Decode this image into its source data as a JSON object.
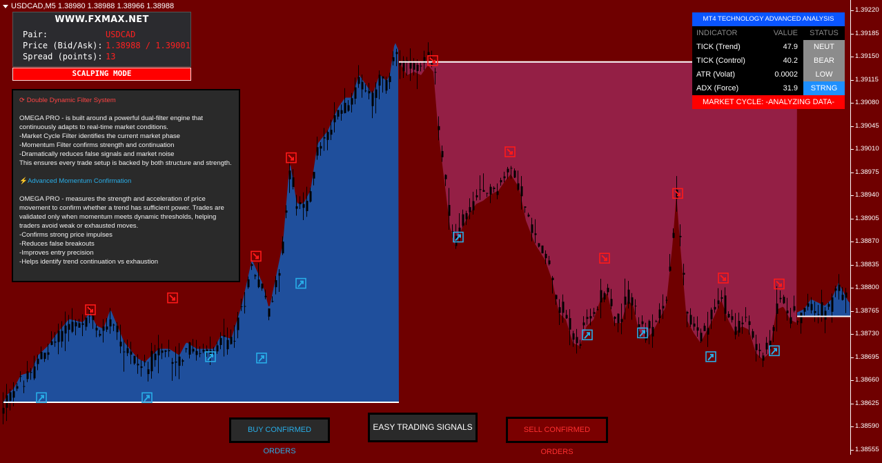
{
  "window": {
    "title": "USDCAD,M5  1.38980 1.38988 1.38966 1.38988"
  },
  "info_panel": {
    "site": "WWW.FXMAX.NET",
    "rows": [
      {
        "label": "Pair:",
        "value": "USDCAD"
      },
      {
        "label": "Price (Bid/Ask):",
        "value": "1.38988 / 1.39001"
      },
      {
        "label": "Spread (points):",
        "value": "13"
      }
    ],
    "mode": "SCALPING MODE"
  },
  "description": {
    "section1_title": "Double Dynamic Filter System",
    "section1_text": "OMEGA PRO - is built around a powerful dual-filter engine that continuously adapts to real-time market conditions.\n-Market Cycle Filter identifies the current market phase\n-Momentum Filter confirms strength and continuation\n-Dramatically reduces false signals and market noise\nThis ensures every trade setup is backed by both structure and strength.",
    "section2_title": "Advanced Momentum Confirmation",
    "section2_text": "OMEGA PRO - measures the strength and acceleration of price movement to confirm whether a trend has sufficient power. Trades are validated only when momentum meets dynamic thresholds, helping traders avoid weak or exhausted moves.\n-Confirms strong price impulses\n-Reduces false breakouts\n-Improves entry precision\n-Helps identify trend continuation vs exhaustion"
  },
  "tech_panel": {
    "title": "MT4 TECHNOLOGY ADVANCED ANALYSIS",
    "headers": [
      "INDICATOR",
      "VALUE",
      "STATUS"
    ],
    "rows": [
      {
        "indicator": "TICK (Trend)",
        "value": "47.9",
        "status": "NEUT",
        "status_color": "#8c8c8c"
      },
      {
        "indicator": "TICK (Control)",
        "value": "40.2",
        "status": "BEAR",
        "status_color": "#8c8c8c"
      },
      {
        "indicator": "ATR (Volat)",
        "value": "0.0002",
        "status": "LOW",
        "status_color": "#8c8c8c"
      },
      {
        "indicator": "ADX (Force)",
        "value": "31.9",
        "status": "STRNG",
        "status_color": "#1e90ff"
      }
    ],
    "cycle": "MARKET CYCLE: -ANALYZING DATA-"
  },
  "buttons": {
    "buy": "BUY CONFIRMED ORDERS",
    "easy": "EASY TRADING SIGNALS",
    "sell": "SELL CONFIRMED ORDERS"
  },
  "colors": {
    "background": "#6f0000",
    "bull_zone": "#1f4f9c",
    "bear_zone": "#941f45",
    "candle": "#000000",
    "buy_arrow": "#29aee8",
    "sell_arrow": "#ff1a1a"
  },
  "chart_data": {
    "type": "candlestick",
    "symbol": "USDCAD",
    "timeframe": "M5",
    "ylim": [
      1.38555,
      1.39235
    ],
    "price_ticks": [
      "1.39220",
      "1.39185",
      "1.39150",
      "1.39115",
      "1.39080",
      "1.39045",
      "1.39010",
      "1.38975",
      "1.38940",
      "1.38905",
      "1.38870",
      "1.38835",
      "1.38800",
      "1.38765",
      "1.38730",
      "1.38695",
      "1.38660",
      "1.38625",
      "1.38590",
      "1.38555"
    ],
    "bar_count": 245,
    "waypoints": [
      [
        0,
        1.38605
      ],
      [
        10,
        1.3863
      ],
      [
        20,
        1.3864
      ],
      [
        30,
        1.3866
      ],
      [
        45,
        1.38665
      ],
      [
        55,
        1.3869
      ],
      [
        70,
        1.38705
      ],
      [
        80,
        1.3872
      ],
      [
        100,
        1.38745
      ],
      [
        120,
        1.3874
      ],
      [
        130,
        1.38755
      ],
      [
        140,
        1.38735
      ],
      [
        150,
        1.3873
      ],
      [
        160,
        1.3876
      ],
      [
        180,
        1.3871
      ],
      [
        200,
        1.38685
      ],
      [
        210,
        1.3868
      ],
      [
        230,
        1.387
      ],
      [
        245,
        1.387
      ],
      [
        260,
        1.3869
      ],
      [
        270,
        1.3871
      ],
      [
        285,
        1.387
      ],
      [
        300,
        1.387
      ],
      [
        310,
        1.387
      ],
      [
        320,
        1.3872
      ],
      [
        335,
        1.38715
      ],
      [
        350,
        1.38765
      ],
      [
        365,
        1.38835
      ],
      [
        380,
        1.388
      ],
      [
        390,
        1.3876
      ],
      [
        400,
        1.3881
      ],
      [
        410,
        1.3886
      ],
      [
        420,
        1.38985
      ],
      [
        430,
        1.3892
      ],
      [
        440,
        1.3892
      ],
      [
        450,
        1.3894
      ],
      [
        460,
        1.3901
      ],
      [
        475,
        1.3903
      ],
      [
        490,
        1.39065
      ],
      [
        500,
        1.3908
      ],
      [
        510,
        1.3908
      ],
      [
        520,
        1.39115
      ],
      [
        530,
        1.391
      ],
      [
        540,
        1.39085
      ],
      [
        550,
        1.39115
      ],
      [
        560,
        1.39105
      ],
      [
        565,
        1.39115
      ],
      [
        572,
        1.39165
      ],
      [
        578,
        1.3915
      ],
      [
        590,
        1.3913
      ],
      [
        600,
        1.39135
      ],
      [
        610,
        1.3913
      ],
      [
        620,
        1.39145
      ],
      [
        628,
        1.39135
      ],
      [
        635,
        1.39045
      ],
      [
        645,
        1.3896
      ],
      [
        652,
        1.389
      ],
      [
        660,
        1.3887
      ],
      [
        670,
        1.389
      ],
      [
        680,
        1.3892
      ],
      [
        690,
        1.38935
      ],
      [
        700,
        1.3894
      ],
      [
        712,
        1.3895
      ],
      [
        722,
        1.38955
      ],
      [
        732,
        1.3897
      ],
      [
        740,
        1.3898
      ],
      [
        752,
        1.3896
      ],
      [
        762,
        1.3891
      ],
      [
        775,
        1.38875
      ],
      [
        790,
        1.3885
      ],
      [
        800,
        1.3882
      ],
      [
        810,
        1.3877
      ],
      [
        820,
        1.3876
      ],
      [
        830,
        1.38725
      ],
      [
        840,
        1.3872
      ],
      [
        850,
        1.3875
      ],
      [
        860,
        1.3876
      ],
      [
        870,
        1.3879
      ],
      [
        880,
        1.388
      ],
      [
        890,
        1.38755
      ],
      [
        900,
        1.38755
      ],
      [
        910,
        1.3879
      ],
      [
        918,
        1.3878
      ],
      [
        925,
        1.38745
      ],
      [
        935,
        1.3873
      ],
      [
        945,
        1.3874
      ],
      [
        955,
        1.3876
      ],
      [
        965,
        1.3878
      ],
      [
        975,
        1.3888
      ],
      [
        980,
        1.3895
      ],
      [
        985,
        1.3888
      ],
      [
        995,
        1.3876
      ],
      [
        1005,
        1.3874
      ],
      [
        1015,
        1.38725
      ],
      [
        1025,
        1.38745
      ],
      [
        1035,
        1.38765
      ],
      [
        1045,
        1.3879
      ],
      [
        1055,
        1.3876
      ],
      [
        1065,
        1.3874
      ],
      [
        1075,
        1.3875
      ],
      [
        1085,
        1.38745
      ],
      [
        1095,
        1.3871
      ],
      [
        1105,
        1.387
      ],
      [
        1115,
        1.3871
      ],
      [
        1125,
        1.38775
      ],
      [
        1135,
        1.3878
      ],
      [
        1145,
        1.3876
      ],
      [
        1155,
        1.38755
      ],
      [
        1165,
        1.3876
      ],
      [
        1175,
        1.38775
      ],
      [
        1185,
        1.3877
      ],
      [
        1195,
        1.38765
      ],
      [
        1205,
        1.38775
      ],
      [
        1215,
        1.388
      ],
      [
        1230,
        1.3877
      ]
    ],
    "zones": [
      {
        "direction": "buy",
        "x_start": 5,
        "x_end": 578,
        "level": 1.38627
      },
      {
        "direction": "sell",
        "x_start": 578,
        "x_end": 1155,
        "level": 1.39142
      },
      {
        "direction": "buy",
        "x_start": 1155,
        "x_end": 1232,
        "level": 1.38757
      }
    ],
    "buy_signals": [
      [
        60,
        1.38634
      ],
      [
        213,
        1.38634
      ],
      [
        305,
        1.38696
      ],
      [
        379,
        1.38694
      ],
      [
        436,
        1.38807
      ],
      [
        664,
        1.38877
      ],
      [
        851,
        1.38729
      ],
      [
        931,
        1.38732
      ],
      [
        1030,
        1.38696
      ],
      [
        1122,
        1.38705
      ]
    ],
    "sell_signals": [
      [
        131,
        1.38767
      ],
      [
        250,
        1.38785
      ],
      [
        371,
        1.38848
      ],
      [
        422,
        1.38997
      ],
      [
        627,
        1.39144
      ],
      [
        739,
        1.39006
      ],
      [
        876,
        1.38845
      ],
      [
        982,
        1.38943
      ],
      [
        1048,
        1.38815
      ],
      [
        1129,
        1.38806
      ]
    ]
  }
}
